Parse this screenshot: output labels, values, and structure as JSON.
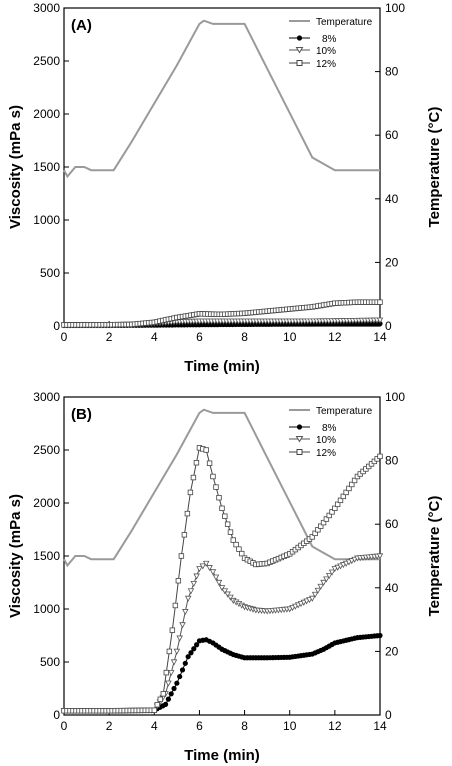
{
  "colors": {
    "temperature": "#9a9a9a",
    "s8": "#000000",
    "s10": "#555555",
    "s12": "#444444"
  },
  "chart_data": [
    {
      "type": "line",
      "panel_label": "(A)",
      "xlabel": "Time (min)",
      "ylabel": "Viscosity (mPa s)",
      "y2label": "Temperature (°C)",
      "xlim": [
        0,
        14
      ],
      "ylim": [
        0,
        3000
      ],
      "y2lim": [
        0,
        100
      ],
      "xticks": [
        "0",
        "2",
        "4",
        "6",
        "8",
        "10",
        "12",
        "14"
      ],
      "yticks": [
        "0",
        "500",
        "1000",
        "1500",
        "2000",
        "2500",
        "3000"
      ],
      "y2ticks": [
        "0",
        "20",
        "40",
        "60",
        "80",
        "100"
      ],
      "legend_position": "top-right",
      "grid": false,
      "series": [
        {
          "key": "temp",
          "name": "Temperature",
          "axis": "right",
          "marker": "none",
          "x": [
            0,
            0.15,
            0.5,
            0.9,
            1.2,
            2.2,
            3,
            4,
            5,
            6,
            6.2,
            6.6,
            7.5,
            8,
            9,
            10,
            11,
            12,
            12.3,
            13,
            14
          ],
          "y": [
            49,
            47,
            50,
            50,
            49,
            49,
            58,
            70,
            82,
            95,
            96,
            95,
            95,
            95,
            81,
            67,
            53,
            49,
            49,
            49,
            49
          ]
        },
        {
          "key": "s8",
          "name": "8%",
          "axis": "left",
          "marker": "circle",
          "x": [
            0,
            2,
            4,
            6,
            8,
            10,
            12,
            14
          ],
          "y": [
            5,
            5,
            8,
            12,
            15,
            18,
            20,
            22
          ]
        },
        {
          "key": "s10",
          "name": "10%",
          "axis": "left",
          "marker": "triangle",
          "x": [
            0,
            2,
            3,
            4,
            5,
            6,
            8,
            10,
            12,
            14
          ],
          "y": [
            10,
            12,
            15,
            25,
            40,
            45,
            45,
            45,
            48,
            55
          ]
        },
        {
          "key": "s12",
          "name": "12%",
          "axis": "left",
          "marker": "square",
          "x": [
            0,
            2,
            3,
            4,
            5,
            6,
            7,
            8,
            9,
            10,
            11,
            12,
            13,
            14
          ],
          "y": [
            10,
            12,
            15,
            35,
            80,
            115,
            110,
            120,
            140,
            160,
            180,
            215,
            225,
            225
          ]
        }
      ]
    },
    {
      "type": "line",
      "panel_label": "(B)",
      "xlabel": "Time (min)",
      "ylabel": "Viscosity (mPa s)",
      "y2label": "Temperature (°C)",
      "xlim": [
        0,
        14
      ],
      "ylim": [
        0,
        3000
      ],
      "y2lim": [
        0,
        100
      ],
      "xticks": [
        "0",
        "2",
        "4",
        "6",
        "8",
        "10",
        "12",
        "14"
      ],
      "yticks": [
        "0",
        "500",
        "1000",
        "1500",
        "2000",
        "2500",
        "3000"
      ],
      "y2ticks": [
        "0",
        "20",
        "40",
        "60",
        "80",
        "100"
      ],
      "legend_position": "top-right",
      "grid": false,
      "series": [
        {
          "key": "temp",
          "name": "Temperature",
          "axis": "right",
          "marker": "none",
          "x": [
            0,
            0.15,
            0.5,
            0.9,
            1.2,
            2.2,
            3,
            4,
            5,
            6,
            6.2,
            6.6,
            7.5,
            8,
            9,
            10,
            11,
            12,
            12.3,
            13,
            14
          ],
          "y": [
            49,
            47,
            50,
            50,
            49,
            49,
            58,
            70,
            82,
            95,
            96,
            95,
            95,
            95,
            81,
            67,
            53,
            49,
            49,
            49,
            49
          ]
        },
        {
          "key": "s8",
          "name": "8%",
          "axis": "left",
          "marker": "circle",
          "x": [
            0,
            2,
            4,
            4.5,
            5,
            5.5,
            6,
            6.3,
            6.6,
            7,
            7.5,
            8,
            9,
            10,
            11,
            11.5,
            12,
            13,
            14
          ],
          "y": [
            40,
            40,
            45,
            100,
            300,
            550,
            700,
            710,
            680,
            620,
            570,
            540,
            540,
            545,
            575,
            620,
            680,
            730,
            750
          ]
        },
        {
          "key": "s10",
          "name": "10%",
          "axis": "left",
          "marker": "triangle",
          "x": [
            0,
            2,
            4,
            4.5,
            5,
            5.5,
            6,
            6.3,
            6.6,
            7,
            7.5,
            8,
            8.5,
            9,
            10,
            11,
            11.5,
            12,
            13,
            14
          ],
          "y": [
            40,
            40,
            45,
            200,
            600,
            1100,
            1380,
            1430,
            1350,
            1200,
            1080,
            1020,
            990,
            980,
            1000,
            1100,
            1250,
            1380,
            1480,
            1500
          ]
        },
        {
          "key": "s12",
          "name": "12%",
          "axis": "left",
          "marker": "square",
          "x": [
            0,
            2,
            4,
            4.4,
            4.8,
            5.2,
            5.6,
            6,
            6.3,
            6.6,
            7,
            7.5,
            8,
            8.5,
            9,
            10,
            11,
            12,
            13,
            14
          ],
          "y": [
            40,
            40,
            45,
            200,
            800,
            1500,
            2100,
            2520,
            2500,
            2250,
            1950,
            1650,
            1480,
            1420,
            1430,
            1520,
            1680,
            1950,
            2250,
            2440
          ]
        }
      ]
    }
  ]
}
